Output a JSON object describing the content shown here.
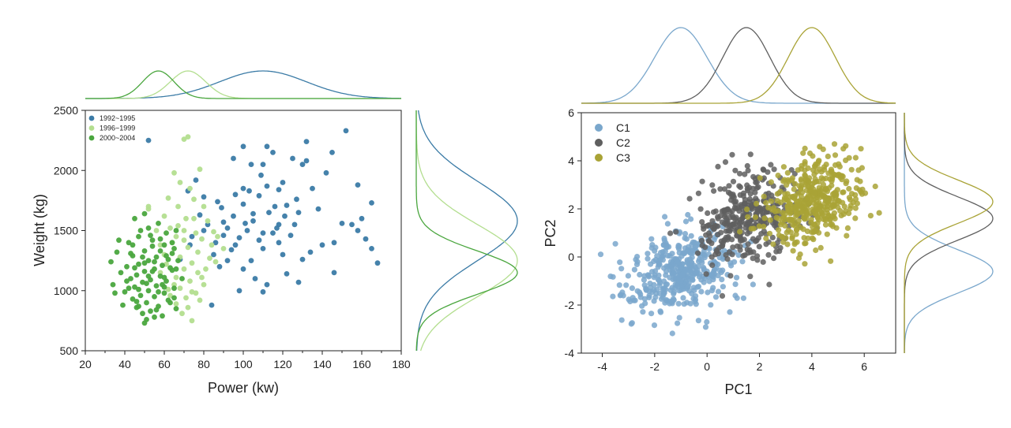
{
  "chart_data": [
    {
      "type": "scatter",
      "xlabel": "Power (kw)",
      "ylabel": "Weight (kg)",
      "xlim": [
        20,
        180
      ],
      "ylim": [
        500,
        2500
      ],
      "xticks": [
        20,
        40,
        60,
        80,
        100,
        120,
        140,
        160,
        180
      ],
      "yticks": [
        500,
        1000,
        1500,
        2000,
        2500
      ],
      "legend_position": "top-left",
      "marginals": "density curves (top for x, right for y)",
      "series": [
        {
          "name": "1992~1995",
          "color": "#3b7ba6",
          "x_mean": 110,
          "x_sd": 22,
          "y_mean": 1580,
          "y_sd": 330,
          "points": [
            [
              110,
              2050
            ],
            [
              112,
              2200
            ],
            [
              115,
              2150
            ],
            [
              120,
              1900
            ],
            [
              132,
              2240
            ],
            [
              145,
              2150
            ],
            [
              152,
              2330
            ],
            [
              52,
              2250
            ],
            [
              130,
              2050
            ],
            [
              100,
              2200
            ],
            [
              104,
              2050
            ],
            [
              125,
              2100
            ],
            [
              132,
              2080
            ],
            [
              95,
              2100
            ],
            [
              72,
              1830
            ],
            [
              80,
              1780
            ],
            [
              76,
              1920
            ],
            [
              87,
              1740
            ],
            [
              100,
              1850
            ],
            [
              108,
              1790
            ],
            [
              112,
              1870
            ],
            [
              118,
              1840
            ],
            [
              122,
              1710
            ],
            [
              128,
              1650
            ],
            [
              138,
              1680
            ],
            [
              150,
              1560
            ],
            [
              158,
              1880
            ],
            [
              160,
              1600
            ],
            [
              165,
              1730
            ],
            [
              168,
              1230
            ],
            [
              162,
              1430
            ],
            [
              165,
              1350
            ],
            [
              155,
              1550
            ],
            [
              158,
              1500
            ],
            [
              146,
              1400
            ],
            [
              140,
              1380
            ],
            [
              146,
              1150
            ],
            [
              134,
              1320
            ],
            [
              130,
              1260
            ],
            [
              128,
              1070
            ],
            [
              122,
              1140
            ],
            [
              120,
              1300
            ],
            [
              115,
              1480
            ],
            [
              110,
              1350
            ],
            [
              108,
              1420
            ],
            [
              104,
              1250
            ],
            [
              100,
              1180
            ],
            [
              98,
              1000
            ],
            [
              96,
              1380
            ],
            [
              92,
              1250
            ],
            [
              90,
              1460
            ],
            [
              88,
              1200
            ],
            [
              85,
              1300
            ],
            [
              84,
              880
            ],
            [
              90,
              1570
            ],
            [
              92,
              1520
            ],
            [
              95,
              1620
            ],
            [
              100,
              1720
            ],
            [
              105,
              1580
            ],
            [
              110,
              1480
            ],
            [
              113,
              1650
            ],
            [
              116,
              1700
            ],
            [
              118,
              1550
            ],
            [
              121,
              1620
            ],
            [
              124,
              1460
            ],
            [
              126,
              1550
            ],
            [
              106,
              1100
            ],
            [
              110,
              990
            ],
            [
              112,
              1050
            ],
            [
              102,
              1500
            ],
            [
              98,
              1440
            ],
            [
              80,
              1500
            ],
            [
              78,
              1630
            ],
            [
              82,
              1550
            ],
            [
              86,
              1400
            ],
            [
              94,
              1340
            ],
            [
              105,
              1640
            ],
            [
              118,
              1400
            ],
            [
              74,
              1450
            ],
            [
              73,
              1380
            ],
            [
              68,
              1260
            ],
            [
              96,
              1800
            ],
            [
              127,
              1760
            ],
            [
              142,
              1980
            ],
            [
              135,
              1850
            ],
            [
              103,
              1830
            ],
            [
              109,
              1960
            ],
            [
              117,
              1520
            ],
            [
              101,
              1560
            ],
            [
              89,
              1690
            ]
          ]
        },
        {
          "name": "1996~1999",
          "color": "#b3de8f",
          "x_mean": 72,
          "x_sd": 9,
          "y_mean": 1250,
          "y_sd": 300,
          "points": [
            [
              70,
              2260
            ],
            [
              72,
              2280
            ],
            [
              65,
              1980
            ],
            [
              68,
              1900
            ],
            [
              78,
              2010
            ],
            [
              73,
              1850
            ],
            [
              62,
              1770
            ],
            [
              80,
              1700
            ],
            [
              60,
              1620
            ],
            [
              75,
              1600
            ],
            [
              82,
              1580
            ],
            [
              85,
              1490
            ],
            [
              70,
              1500
            ],
            [
              66,
              1450
            ],
            [
              79,
              1430
            ],
            [
              64,
              1400
            ],
            [
              72,
              1360
            ],
            [
              77,
              1320
            ],
            [
              68,
              1280
            ],
            [
              83,
              1270
            ],
            [
              74,
              1230
            ],
            [
              61,
              1220
            ],
            [
              70,
              1180
            ],
            [
              77,
              1150
            ],
            [
              66,
              1110
            ],
            [
              73,
              1080
            ],
            [
              80,
              1050
            ],
            [
              68,
              1020
            ],
            [
              74,
              990
            ],
            [
              63,
              960
            ],
            [
              71,
              940
            ],
            [
              78,
              920
            ],
            [
              66,
              890
            ],
            [
              72,
              860
            ],
            [
              69,
              810
            ],
            [
              74,
              750
            ],
            [
              60,
              1300
            ],
            [
              58,
              1380
            ],
            [
              56,
              1500
            ],
            [
              52,
              1700
            ],
            [
              52,
              1680
            ],
            [
              87,
              1450
            ],
            [
              90,
              1350
            ],
            [
              86,
              1240
            ],
            [
              84,
              1380
            ],
            [
              76,
              1480
            ],
            [
              71,
              1600
            ],
            [
              67,
              1700
            ],
            [
              75,
              1760
            ],
            [
              79,
              1110
            ],
            [
              81,
              1180
            ],
            [
              65,
              1050
            ],
            [
              62,
              1010
            ],
            [
              58,
              1150
            ],
            [
              76,
              980
            ],
            [
              70,
              1420
            ],
            [
              63,
              1520
            ],
            [
              67,
              1540
            ]
          ]
        },
        {
          "name": "2000~2004",
          "color": "#4aa63e",
          "x_mean": 57,
          "x_sd": 8,
          "y_mean": 1150,
          "y_sd": 180,
          "points": [
            [
              50,
              1640
            ],
            [
              45,
              1600
            ],
            [
              52,
              1520
            ],
            [
              57,
              1560
            ],
            [
              61,
              1480
            ],
            [
              66,
              1500
            ],
            [
              47,
              1450
            ],
            [
              54,
              1420
            ],
            [
              42,
              1400
            ],
            [
              60,
              1380
            ],
            [
              65,
              1350
            ],
            [
              50,
              1330
            ],
            [
              36,
              1320
            ],
            [
              44,
              1290
            ],
            [
              56,
              1280
            ],
            [
              62,
              1260
            ],
            [
              52,
              1250
            ],
            [
              33,
              1240
            ],
            [
              47,
              1220
            ],
            [
              59,
              1210
            ],
            [
              41,
              1200
            ],
            [
              55,
              1180
            ],
            [
              64,
              1170
            ],
            [
              50,
              1160
            ],
            [
              38,
              1150
            ],
            [
              46,
              1130
            ],
            [
              58,
              1120
            ],
            [
              43,
              1100
            ],
            [
              53,
              1090
            ],
            [
              61,
              1080
            ],
            [
              49,
              1070
            ],
            [
              34,
              1050
            ],
            [
              56,
              1040
            ],
            [
              45,
              1030
            ],
            [
              65,
              1020
            ],
            [
              52,
              1000
            ],
            [
              40,
              990
            ],
            [
              60,
              980
            ],
            [
              48,
              960
            ],
            [
              55,
              950
            ],
            [
              44,
              930
            ],
            [
              62,
              920
            ],
            [
              51,
              900
            ],
            [
              39,
              880
            ],
            [
              57,
              870
            ],
            [
              46,
              860
            ],
            [
              66,
              850
            ],
            [
              53,
              830
            ],
            [
              49,
              810
            ],
            [
              59,
              790
            ],
            [
              51,
              760
            ],
            [
              50,
              730
            ],
            [
              63,
              1190
            ],
            [
              67,
              1250
            ],
            [
              69,
              1100
            ],
            [
              58,
              1330
            ],
            [
              54,
              1370
            ],
            [
              48,
              1500
            ],
            [
              43,
              1310
            ],
            [
              37,
              1420
            ],
            [
              35,
              980
            ],
            [
              64,
              1400
            ],
            [
              60,
              1030
            ],
            [
              47,
              1010
            ],
            [
              55,
              1240
            ],
            [
              52,
              1120
            ],
            [
              57,
              990
            ],
            [
              45,
              1190
            ],
            [
              63,
              900
            ],
            [
              41,
              1080
            ],
            [
              53,
              1460
            ],
            [
              49,
              1280
            ],
            [
              59,
              1050
            ],
            [
              46,
              910
            ],
            [
              61,
              1290
            ],
            [
              56,
              840
            ],
            [
              50,
              1230
            ],
            [
              66,
              1180
            ],
            [
              42,
              1020
            ],
            [
              54,
              1160
            ],
            [
              58,
              1430
            ],
            [
              65,
              940
            ],
            [
              44,
              1380
            ],
            [
              51,
              1060
            ],
            [
              47,
              870
            ],
            [
              60,
              1110
            ],
            [
              55,
              780
            ],
            [
              64,
              1310
            ]
          ]
        }
      ]
    },
    {
      "type": "scatter",
      "xlabel": "PC1",
      "ylabel": "PC2",
      "xlim": [
        -4.8,
        7.2
      ],
      "ylim": [
        -4,
        6
      ],
      "xticks": [
        -4,
        -2,
        0,
        2,
        4,
        6
      ],
      "yticks": [
        -4,
        -2,
        0,
        2,
        4,
        6
      ],
      "legend_position": "top-left",
      "marginals": "density curves (top for x, right for y)",
      "series": [
        {
          "name": "C1",
          "color": "#7aa7cc",
          "n": 420,
          "x_mean": -1.0,
          "x_sd": 1.0,
          "y_mean": -0.6,
          "y_sd": 0.9,
          "rho": 0.3
        },
        {
          "name": "C2",
          "color": "#5f5f5f",
          "n": 340,
          "x_mean": 1.5,
          "x_sd": 0.9,
          "y_mean": 1.6,
          "y_sd": 0.9,
          "rho": 0.25
        },
        {
          "name": "C3",
          "color": "#a9a336",
          "n": 420,
          "x_mean": 4.0,
          "x_sd": 0.9,
          "y_mean": 2.3,
          "y_sd": 0.9,
          "rho": 0.3
        }
      ]
    }
  ]
}
